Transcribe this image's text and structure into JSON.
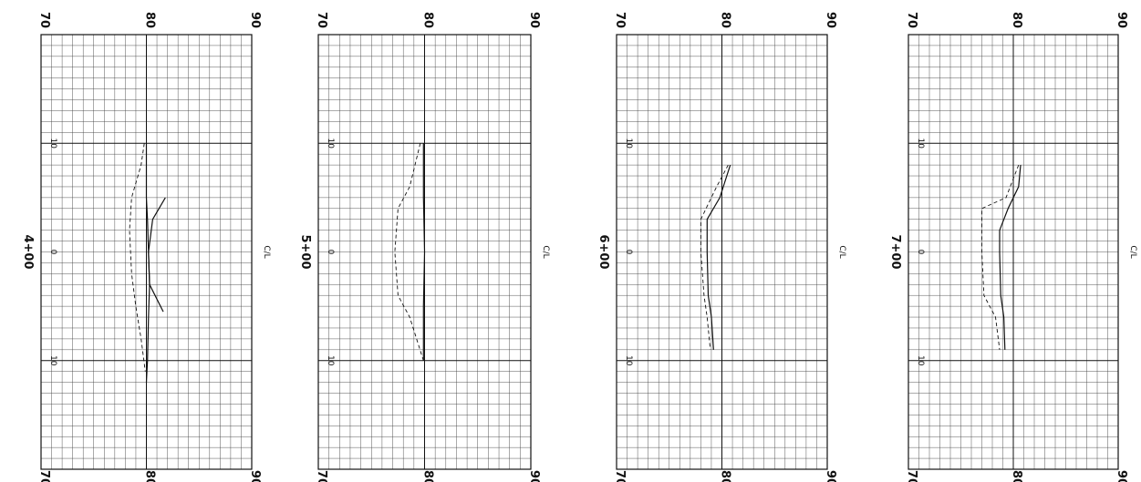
{
  "sheet": {
    "centerline_label": "C/L"
  },
  "chart_data": [
    {
      "type": "line",
      "station_label": "4+00",
      "elevation_ticks": [
        "70",
        "80",
        "90"
      ],
      "offset_ticks": [
        "10",
        "0",
        "10"
      ],
      "xlim": [
        -20,
        20
      ],
      "ylim": [
        70,
        90
      ],
      "series": [
        {
          "style": "dashed",
          "points": [
            [
              -10,
              79.8
            ],
            [
              -8,
              79.5
            ],
            [
              -5,
              78.6
            ],
            [
              -2,
              78.4
            ],
            [
              2,
              78.6
            ],
            [
              5,
              79.0
            ],
            [
              8,
              79.5
            ],
            [
              11,
              79.9
            ]
          ]
        },
        {
          "style": "solid",
          "points": [
            [
              -10,
              80.0
            ],
            [
              -5,
              80.0
            ],
            [
              -3,
              80.1
            ],
            [
              0,
              80.2
            ],
            [
              3,
              80.3
            ],
            [
              6,
              80.2
            ],
            [
              10,
              80.1
            ],
            [
              12,
              80.0
            ]
          ]
        },
        {
          "style": "solid",
          "points": [
            [
              -5,
              81.8
            ],
            [
              -3,
              80.6
            ],
            [
              0,
              80.2
            ],
            [
              3,
              80.3
            ],
            [
              5.5,
              81.6
            ]
          ]
        }
      ]
    },
    {
      "type": "line",
      "station_label": "5+00",
      "elevation_ticks": [
        "70",
        "80",
        "90"
      ],
      "offset_ticks": [
        "10",
        "0",
        "10"
      ],
      "xlim": [
        -20,
        20
      ],
      "ylim": [
        70,
        90
      ],
      "series": [
        {
          "style": "dashed",
          "points": [
            [
              -10,
              79.6
            ],
            [
              -6,
              78.6
            ],
            [
              -4,
              77.5
            ],
            [
              0,
              77.2
            ],
            [
              4,
              77.5
            ],
            [
              6,
              78.6
            ],
            [
              10,
              79.9
            ]
          ]
        },
        {
          "style": "solid",
          "points": [
            [
              -10,
              79.9
            ],
            [
              -5,
              79.9
            ],
            [
              0,
              80.0
            ],
            [
              5,
              79.9
            ],
            [
              10,
              79.9
            ]
          ]
        }
      ]
    },
    {
      "type": "line",
      "station_label": "6+00",
      "elevation_ticks": [
        "70",
        "80",
        "90"
      ],
      "offset_ticks": [
        "10",
        "0",
        "10"
      ],
      "xlim": [
        -20,
        20
      ],
      "ylim": [
        70,
        90
      ],
      "series": [
        {
          "style": "dashed",
          "points": [
            [
              -8,
              80.6
            ],
            [
              -6,
              79.5
            ],
            [
              -3,
              78.0
            ],
            [
              0,
              78.0
            ],
            [
              4,
              78.3
            ],
            [
              6,
              78.6
            ],
            [
              9,
              78.9
            ]
          ]
        },
        {
          "style": "solid",
          "points": [
            [
              -8,
              80.8
            ],
            [
              -5,
              79.8
            ],
            [
              -3,
              78.6
            ],
            [
              0,
              78.6
            ],
            [
              4,
              78.7
            ],
            [
              6,
              79.0
            ],
            [
              9,
              79.2
            ]
          ]
        }
      ]
    },
    {
      "type": "line",
      "station_label": "7+00",
      "elevation_ticks": [
        "70",
        "80",
        "90"
      ],
      "offset_ticks": [
        "10",
        "0",
        "10"
      ],
      "xlim": [
        -20,
        20
      ],
      "ylim": [
        70,
        90
      ],
      "series": [
        {
          "style": "dashed",
          "points": [
            [
              -8,
              80.5
            ],
            [
              -5,
              79.3
            ],
            [
              -4,
              77.0
            ],
            [
              0,
              77.0
            ],
            [
              4,
              77.2
            ],
            [
              6,
              78.3
            ],
            [
              9,
              78.7
            ]
          ]
        },
        {
          "style": "solid",
          "points": [
            [
              -8,
              80.7
            ],
            [
              -6,
              80.5
            ],
            [
              -4,
              79.5
            ],
            [
              -2,
              78.7
            ],
            [
              0,
              78.7
            ],
            [
              4,
              78.8
            ],
            [
              6,
              79.1
            ],
            [
              9,
              79.2
            ]
          ]
        }
      ]
    }
  ]
}
